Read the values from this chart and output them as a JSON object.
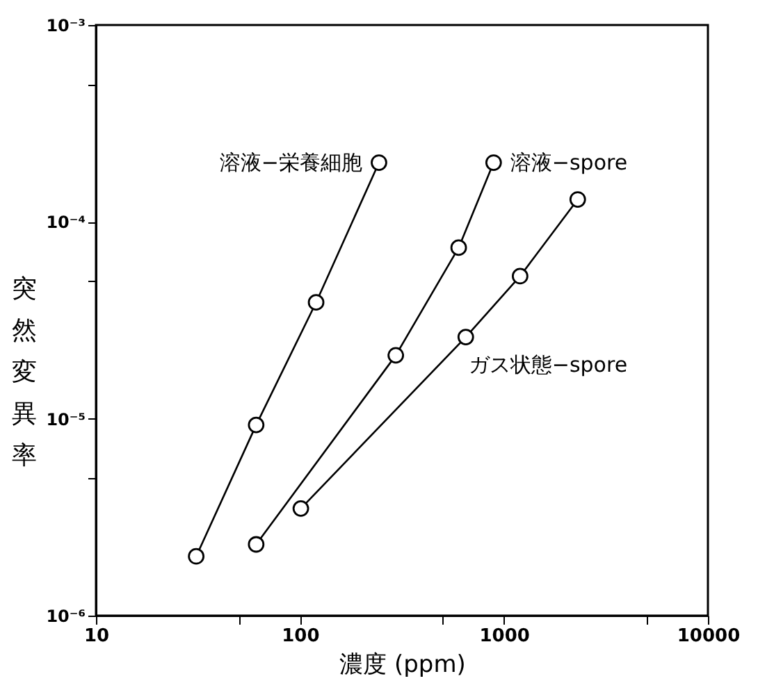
{
  "chart_data": {
    "type": "line",
    "xlabel": "濃度 (ppm)",
    "ylabel": "突然変異率",
    "log": "xy",
    "marker": "circle",
    "line_style": "solid",
    "grid": false,
    "legend": false,
    "xlim": [
      10,
      10000
    ],
    "xticks": [
      10,
      {
        "value": 50,
        "label": null
      },
      100,
      {
        "value": 500,
        "label": null
      },
      1000,
      {
        "value": 5000,
        "label": null
      },
      10000
    ],
    "ylim": [
      1e-06,
      0.001
    ],
    "yticks": [
      {
        "value": 1e-06,
        "label": "10⁻⁶"
      },
      {
        "value": 5e-06,
        "label": null
      },
      {
        "value": 1e-05,
        "label": "10⁻⁵"
      },
      {
        "value": 5e-05,
        "label": null
      },
      {
        "value": 0.0001,
        "label": "10⁻⁴"
      },
      {
        "value": 0.0005,
        "label": null
      },
      {
        "value": 0.001,
        "label": "10⁻³"
      }
    ],
    "series": [
      {
        "name": "溶液−栄養細胞",
        "color": "#000000",
        "x": [
          31,
          61,
          120,
          244
        ],
        "values": [
          2e-06,
          9.3e-06,
          3.9e-05,
          0.0002
        ]
      },
      {
        "name": "溶液−spore",
        "color": "#000000",
        "x": [
          61,
          295,
          600,
          890
        ],
        "values": [
          2.3e-06,
          2.1e-05,
          7.4e-05,
          0.0002
        ]
      },
      {
        "name": "ガス状態−spore",
        "color": "#000000",
        "x": [
          101,
          650,
          1200,
          2300
        ],
        "values": [
          3.5e-06,
          2.6e-05,
          5.3e-05,
          0.00013
        ]
      }
    ]
  }
}
